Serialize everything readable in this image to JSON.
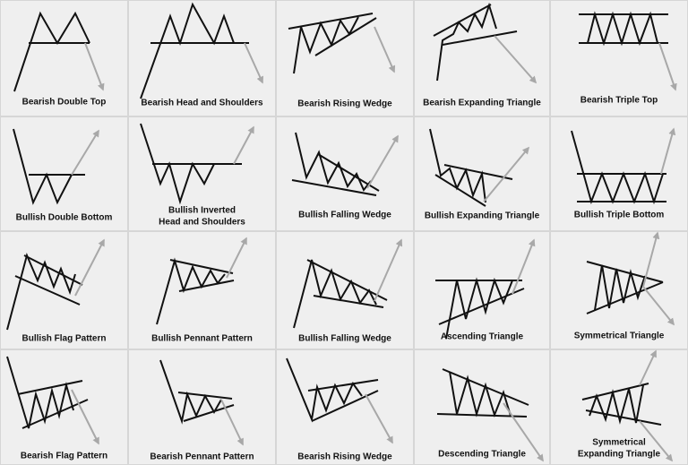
{
  "cells": [
    {
      "label": [
        "Bearish Double Top"
      ]
    },
    {
      "label": [
        "Bearish Head and Shoulders"
      ]
    },
    {
      "label": [
        "Bearish Rising Wedge"
      ]
    },
    {
      "label": [
        "Bearish Expanding Triangle"
      ]
    },
    {
      "label": [
        "Bearish Triple Top"
      ]
    },
    {
      "label": [
        "Bullish Double Bottom"
      ]
    },
    {
      "label": [
        "Bullish Inverted",
        "Head and Shoulders"
      ]
    },
    {
      "label": [
        "Bullish Falling Wedge"
      ]
    },
    {
      "label": [
        "Bullish Expanding Triangle"
      ]
    },
    {
      "label": [
        "Bullish Triple Bottom"
      ]
    },
    {
      "label": [
        "Bullish Flag Pattern"
      ]
    },
    {
      "label": [
        "Bullish Pennant Pattern"
      ]
    },
    {
      "label": [
        "Bullish Falling Wedge"
      ]
    },
    {
      "label": [
        "Ascending Triangle"
      ]
    },
    {
      "label": [
        "Symmetrical Triangle"
      ]
    },
    {
      "label": [
        "Bearish Flag Pattern"
      ]
    },
    {
      "label": [
        "Bearish Pennant Pattern"
      ]
    },
    {
      "label": [
        "Bearish Rising Wedge"
      ]
    },
    {
      "label": [
        "Descending Triangle"
      ]
    },
    {
      "label": [
        "Symmetrical",
        "Expanding Triangle"
      ]
    }
  ]
}
